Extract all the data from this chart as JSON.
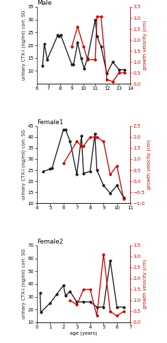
{
  "panels": [
    {
      "title": "Male",
      "black_x": [
        6.5,
        6.65,
        6.9,
        7.8,
        7.9,
        8.05,
        9.0,
        9.15,
        9.5,
        9.8,
        10.05,
        10.35,
        11.0,
        11.15,
        11.5,
        12.0,
        12.5,
        13.05,
        13.5
      ],
      "black_y": [
        12,
        20.5,
        14.5,
        24,
        23.5,
        24,
        12.5,
        12.5,
        21,
        15,
        11,
        15,
        30,
        23.5,
        19.5,
        9,
        13.5,
        10.5,
        10.5
      ],
      "red_x": [
        9.0,
        9.5,
        10.0,
        10.35,
        11.0,
        11.15,
        11.5,
        12.0,
        12.5,
        13.05,
        13.5
      ],
      "red_y": [
        1.7,
        2.6,
        1.7,
        1.1,
        1.1,
        3.05,
        3.05,
        0.2,
        0.1,
        0.5,
        0.5
      ],
      "ylim_left": [
        5,
        35
      ],
      "ylim_right": [
        0,
        3.5
      ],
      "yticks_left": [
        10,
        15,
        20,
        25,
        30,
        35
      ],
      "yticks_right": [
        0.0,
        0.5,
        1.0,
        1.5,
        2.0,
        2.5,
        3.0,
        3.5
      ],
      "xlim": [
        6,
        14
      ],
      "xticks": [
        6,
        7,
        8,
        9,
        10,
        11,
        12,
        13,
        14
      ]
    },
    {
      "title": "Female1",
      "black_x": [
        4.5,
        5.0,
        5.15,
        6.0,
        6.15,
        6.5,
        7.0,
        7.35,
        7.5,
        8.0,
        8.35,
        8.5,
        9.0,
        9.5,
        10.0,
        10.5
      ],
      "black_y": [
        24.5,
        25.5,
        26,
        43.5,
        43.5,
        38,
        23,
        40.5,
        23.5,
        24.5,
        41.5,
        25,
        18,
        14.5,
        18,
        12.5
      ],
      "red_x": [
        6.0,
        7.0,
        7.35,
        7.5,
        8.0,
        8.35,
        8.5,
        9.0,
        9.5,
        10.0,
        10.5
      ],
      "red_y": [
        0.8,
        1.8,
        1.6,
        1.6,
        2.0,
        2.0,
        2.0,
        1.8,
        0.3,
        0.7,
        -0.8
      ],
      "ylim_left": [
        10,
        45
      ],
      "ylim_right": [
        -1.0,
        2.5
      ],
      "yticks_left": [
        10,
        15,
        20,
        25,
        30,
        35,
        40,
        45
      ],
      "yticks_right": [
        -1.0,
        -0.5,
        0.0,
        0.5,
        1.0,
        1.5,
        2.0,
        2.5
      ],
      "xlim": [
        4,
        11
      ],
      "xticks": [
        4,
        5,
        6,
        7,
        8,
        9,
        10,
        11
      ]
    },
    {
      "title": "Female2",
      "black_x": [
        0.25,
        0.3,
        1.0,
        1.5,
        2.0,
        2.15,
        2.5,
        3.0,
        3.5,
        4.0,
        4.5,
        5.0,
        5.5,
        6.0,
        6.5
      ],
      "black_y": [
        33,
        18,
        25,
        32,
        39,
        31,
        34,
        26,
        26,
        26,
        22,
        22,
        58,
        22,
        22
      ],
      "red_x": [
        2.5,
        3.0,
        3.5,
        4.0,
        4.5,
        5.0,
        5.5,
        6.0,
        6.5
      ],
      "red_y": [
        1.0,
        0.8,
        1.5,
        1.5,
        0.3,
        3.1,
        0.5,
        0.3,
        0.5
      ],
      "ylim_left": [
        10,
        70
      ],
      "ylim_right": [
        0.0,
        3.5
      ],
      "yticks_left": [
        10,
        20,
        30,
        40,
        50,
        60,
        70
      ],
      "yticks_right": [
        0.0,
        0.5,
        1.0,
        1.5,
        2.0,
        2.5,
        3.0,
        3.5
      ],
      "xlim": [
        0,
        7
      ],
      "xticks": [
        0,
        1,
        2,
        3,
        4,
        5,
        6,
        7
      ]
    }
  ],
  "ylabel_left": "urinary CTX-I (ng/ml) corr. SG",
  "ylabel_right": "growth velocity (cm)",
  "xlabel": "age (years)",
  "black_color": "#1a1a1a",
  "red_color": "#cc0000",
  "marker": "o",
  "markersize": 2.5,
  "linewidth": 1.0,
  "fontsize_title": 6.5,
  "fontsize_tick": 5.0,
  "fontsize_label": 5.0
}
